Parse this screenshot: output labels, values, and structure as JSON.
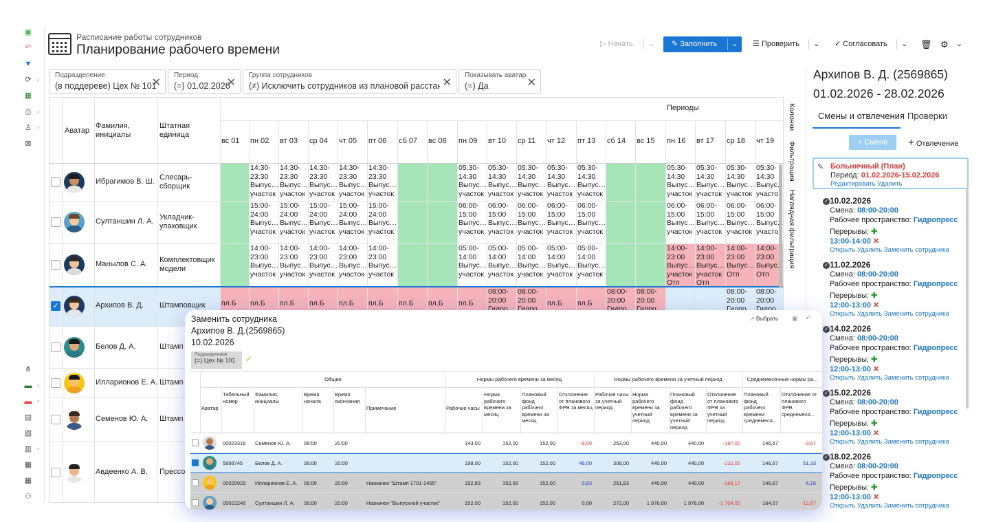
{
  "header": {
    "subtitle": "Расписание работы сотрудников",
    "title": "Планирование рабочего времени",
    "start_label": "Начать",
    "fill_label": "Заполнить",
    "check_label": "Проверить",
    "approve_label": "Согласовать"
  },
  "filters": [
    {
      "label": "Подразделение",
      "value": "(в поддереве) Цех № 101"
    },
    {
      "label": "Период",
      "value": "(=) 01.02.2026"
    },
    {
      "label": "Группа сотрудников",
      "value": "(≠) Исключить сотрудников из плановой расстан..."
    },
    {
      "label": "Показывать аватар",
      "value": "(=) Да"
    }
  ],
  "grid": {
    "col_avatar": "Аватар",
    "col_name": "Фамилия, инициалы",
    "col_pos": "Штатная единица",
    "periods_label": "Периоды",
    "side_columns": "Колонки",
    "side_filtration": "Фильтрация",
    "side_visual": "Наглядная фильтрация",
    "days": [
      "вс 01",
      "пн 02",
      "вт 03",
      "ср 04",
      "чт 05",
      "пт 06",
      "сб 07",
      "вс 08",
      "пн 09",
      "вт 10",
      "ср 11",
      "чт 12",
      "пт 13",
      "сб 14",
      "вс 15",
      "пн 16",
      "вт 17",
      "ср 18",
      "чт 19"
    ],
    "rows": [
      {
        "name": "Ибрагимов В. Ш.",
        "pos": "Слесарь-сборщик"
      },
      {
        "name": "Султаншин Л. А.",
        "pos": "Укладчик-упаковщик"
      },
      {
        "name": "Манылов С. А.",
        "pos": "Комплектовщик модели"
      },
      {
        "name": "Архипов В. Д.",
        "pos": "Штамповщик"
      },
      {
        "name": "Белов Д. А.",
        "pos": "Штамп"
      },
      {
        "name": "Илларионов Е. А.",
        "pos": "Штамп"
      },
      {
        "name": "Семенов Ю. А.",
        "pos": "Штамп"
      },
      {
        "name": "Авдеенко А. В.",
        "pos": "Прессо"
      }
    ],
    "r1a": "14:30-\n23:30\nВыпус…\nучасток",
    "r1b": "05:30-\n14:30\nВыпус…\nучасток",
    "r2a": "15:00-\n24:00\nВыпус…\nучасток",
    "r2b": "06:00-\n15:00\nВыпус…\nучасток",
    "r3a": "14:00-\n23:00\nВыпус…\nучасток",
    "r3b": "05:00-\n14:00\nВыпус…\nучасток",
    "r3c": "14:00-\n23:00\nВыпус…\nучасток\nОтп",
    "r3d": "14:00-\n23:00\nВыпус…\nОтп",
    "plb": "пл.Б",
    "r4a": "08:00-\n20:00\nГидро…",
    "r4b": "08:00-\n20:00\nГидро…"
  },
  "right": {
    "name": "Архипов В. Д. (2569865)",
    "dates": "01.02.2026 - 28.02.2026",
    "tab1": "Смены и отвлечения",
    "tab2": "Проверки",
    "smena_btn": "Смена",
    "otvl_btn": "Отвлечение",
    "sick_title": "Больничный (План)",
    "sick_period_label": "Период:",
    "sick_period": "01.02.2026-15.02.2026",
    "sick_links": "Редактировать Удалить",
    "smena_label": "Смена:",
    "ws_label": "Рабочее пространство:",
    "ws_value": "Гидропресс",
    "breaks_label": "Перерывы:",
    "links": "Открыть Удалить Заменить сотрудника",
    "entries": [
      {
        "date": "10.02.2026",
        "shift": "08:00-20:00",
        "brk": "13:00-14:00"
      },
      {
        "date": "11.02.2026",
        "shift": "08:00-20:00",
        "brk": "12:00-13:00"
      },
      {
        "date": "14.02.2026",
        "shift": "08:00-20:00",
        "brk": "12:00-13:00"
      },
      {
        "date": "15.02.2026",
        "shift": "08:00-20:00",
        "brk": "12:00-13:00"
      },
      {
        "date": "18.02.2026",
        "shift": "08:00-20:00",
        "brk": "12:00-13:00"
      }
    ]
  },
  "popup": {
    "title": "Заменить сотрудника",
    "employee": "Архипов В. Д.(2569865)",
    "date": "10.02.2026",
    "select_label": "Выбрать",
    "sub_label": "Подразделение",
    "sub_value": "(=) Цех № 101",
    "group_general": "Общие",
    "group_month": "Нормы рабочего времени за месяц",
    "group_period": "Нормы рабочего времени за учетный период",
    "group_avg": "Среднемесячные нормы ра...",
    "cols": {
      "avatar": "Аватар",
      "tab": "Табельный номер",
      "fio": "Фамилия, инициалы",
      "start": "Время начала",
      "end": "Время окончания",
      "note": "Примечание",
      "work": "Рабочие часы",
      "norm": "Норма рабочего времени за месяц",
      "plan": "Плановый фонд рабочего времени за месяц",
      "dev": "Отклонение от планового ФРВ за месяц",
      "wp": "Рабочие часы за учетный период",
      "np": "Норма рабочего времени за учетный период",
      "pp": "Плановый фонд рабочего времени за учетный период",
      "dp": "Отклонение от планового ФРВ за учетный период",
      "pa": "Плановый фонд рабочего времени среднемеся...",
      "da": "Отклонение от планового ФРВ среднемеся..."
    },
    "rows": [
      {
        "tab": "00023318",
        "fio": "Семенов Ю. А.",
        "start": "08:00",
        "end": "20:00",
        "note": "",
        "work": "143,00",
        "norm": "152,00",
        "plan": "152,00",
        "dev": "-9,00",
        "wp": "253,00",
        "np": "440,00",
        "pp": "440,00",
        "dp": "-187,00",
        "pa": "146,67",
        "da": "-3,67"
      },
      {
        "tab": "5898745",
        "fio": "Белов Д. А.",
        "start": "08:00",
        "end": "20:00",
        "note": "",
        "work": "198,00",
        "norm": "152,00",
        "plan": "152,00",
        "dev": "46,00",
        "wp": "308,00",
        "np": "440,00",
        "pp": "440,00",
        "dp": "-132,00",
        "pa": "146,67",
        "da": "51,33"
      },
      {
        "tab": "00020029",
        "fio": "Илларионов Е. А.",
        "start": "08:00",
        "end": "20:00",
        "note": "Назначен \"Штамп 1701-1455\"",
        "work": "152,83",
        "norm": "152,00",
        "plan": "152,00",
        "dev": "0,83",
        "wp": "251,83",
        "np": "440,00",
        "pp": "440,00",
        "dp": "-188,17",
        "pa": "146,67",
        "da": "6,16"
      },
      {
        "tab": "00023246",
        "fio": "Султаншин Л. А.",
        "start": "08:00",
        "end": "20:00",
        "note": "Назначен \"Выпускной участок\"",
        "work": "152,00",
        "norm": "152,00",
        "plan": "152,00",
        "dev": "0,00",
        "wp": "272,00",
        "np": "1 976,00",
        "pp": "1 976,00",
        "dp": "-1 704,00",
        "pa": "164,67",
        "da": "-12,67"
      }
    ]
  }
}
